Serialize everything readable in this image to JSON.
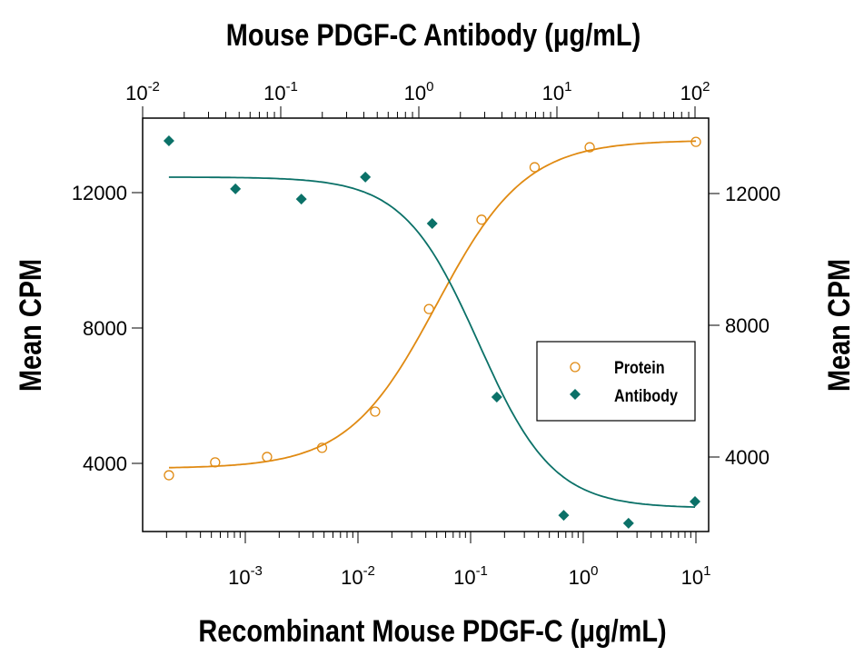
{
  "chart_data": {
    "type": "scatter",
    "top_axis": {
      "label": "Mouse PDGF-C Antibody (μg/mL)",
      "scale": "log",
      "range": [
        0.01,
        100
      ],
      "ticks": [
        "-2",
        "-1",
        "0",
        "1",
        "2"
      ]
    },
    "bottom_axis": {
      "label": "Recombinant Mouse PDGF-C (μg/mL)",
      "scale": "log",
      "range": [
        0.0001,
        10
      ],
      "ticks": [
        "-3",
        "-2",
        "-1",
        "0",
        "1"
      ]
    },
    "left_axis": {
      "label": "Mean CPM",
      "ticks": [
        "12000",
        "8000",
        "4000"
      ]
    },
    "right_axis": {
      "label": "Mean CPM",
      "ticks": [
        "12000",
        "8000",
        "4000"
      ]
    },
    "legend": {
      "placement": "center-right",
      "entries": [
        "Protein",
        "Antibody"
      ]
    },
    "colors": {
      "protein": "#e08a12",
      "antibody": "#0b7168"
    },
    "series": [
      {
        "name": "Protein",
        "axis": "bottom-left",
        "marker": "open-circle",
        "x": [
          0.00021,
          0.00054,
          0.00156,
          0.0048,
          0.0142,
          0.0427,
          0.125,
          0.37,
          1.14,
          10
        ],
        "y": [
          3650,
          4030,
          4190,
          4460,
          5530,
          8560,
          11200,
          12750,
          13340,
          13500
        ],
        "fit": {
          "bottom": 3850,
          "top": 13550,
          "ec50": 0.05,
          "hill": 1.1
        }
      },
      {
        "name": "Antibody",
        "axis": "top-right",
        "marker": "filled-diamond",
        "x": [
          0.0155,
          0.047,
          0.141,
          0.41,
          1.25,
          3.67,
          11.2,
          33,
          100
        ],
        "y": [
          13600,
          12140,
          11830,
          12500,
          11090,
          5820,
          2230,
          1990,
          2650
        ],
        "fit": {
          "bottom": 2450,
          "top": 12500,
          "ec50": 2.7,
          "hill": 1.6
        }
      }
    ]
  }
}
